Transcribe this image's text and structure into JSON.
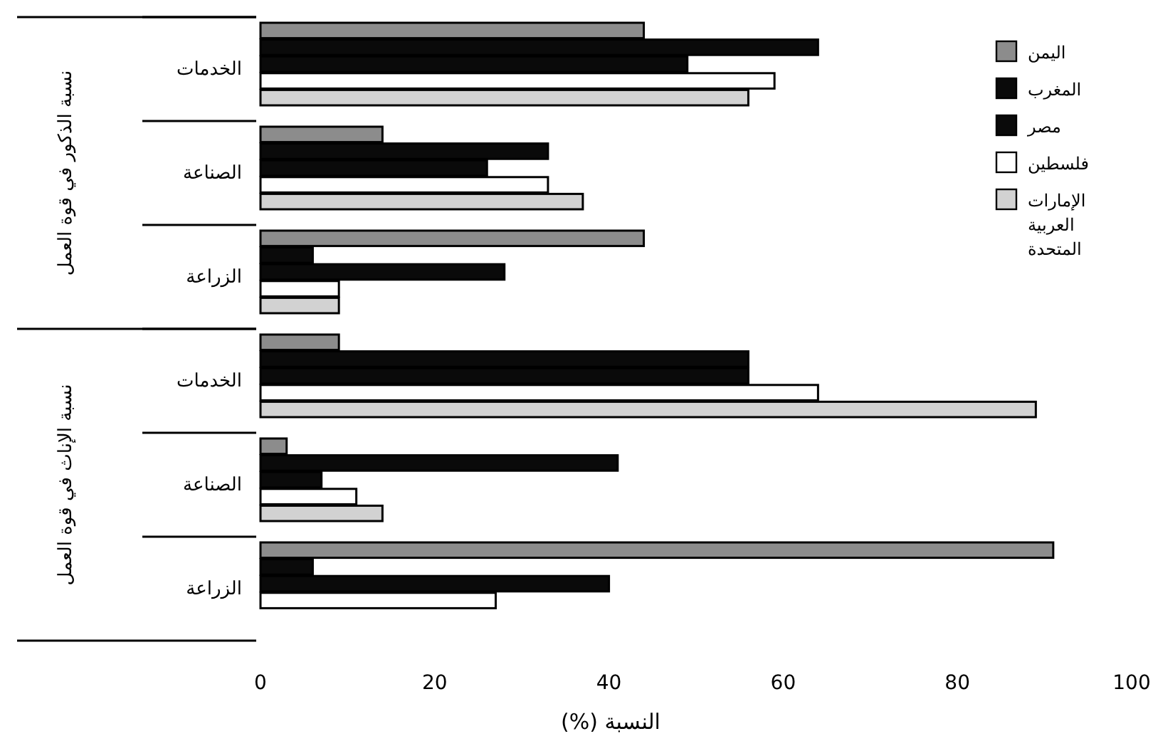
{
  "chart_data": {
    "type": "bar",
    "orientation": "horizontal",
    "xlabel": "النسبة (%)",
    "categories": [
      "الخدمات",
      "الصناعة",
      "الزراعة",
      "الخدمات",
      "الصناعة",
      "الزراعة"
    ],
    "series": [
      {
        "name": "اليمن",
        "color": "#8c8c8c",
        "values": [
          44,
          14,
          44,
          9,
          3,
          91
        ]
      },
      {
        "name": "المغرب",
        "color": "#0a0a0a",
        "values": [
          64,
          33,
          6,
          56,
          41,
          6
        ]
      },
      {
        "name": "مصر",
        "color": "#0a0a0a",
        "values": [
          49,
          26,
          28,
          56,
          7,
          40
        ]
      },
      {
        "name": "فلسطين",
        "color": "#ffffff",
        "values": [
          59,
          33,
          9,
          64,
          11,
          27
        ]
      },
      {
        "name": "الإمارات العربية المتحدة",
        "color": "#d2d2d2",
        "values": [
          56,
          37,
          9,
          89,
          14,
          null
        ]
      }
    ],
    "annotations": [
      "نسبة الذكور في قوة العمل",
      "نسبة الإناث في قوة العمل"
    ],
    "xlim": [
      0,
      100
    ],
    "xticks": [
      0,
      20,
      40,
      60,
      80,
      100
    ],
    "grid": false,
    "legend": "top right"
  }
}
